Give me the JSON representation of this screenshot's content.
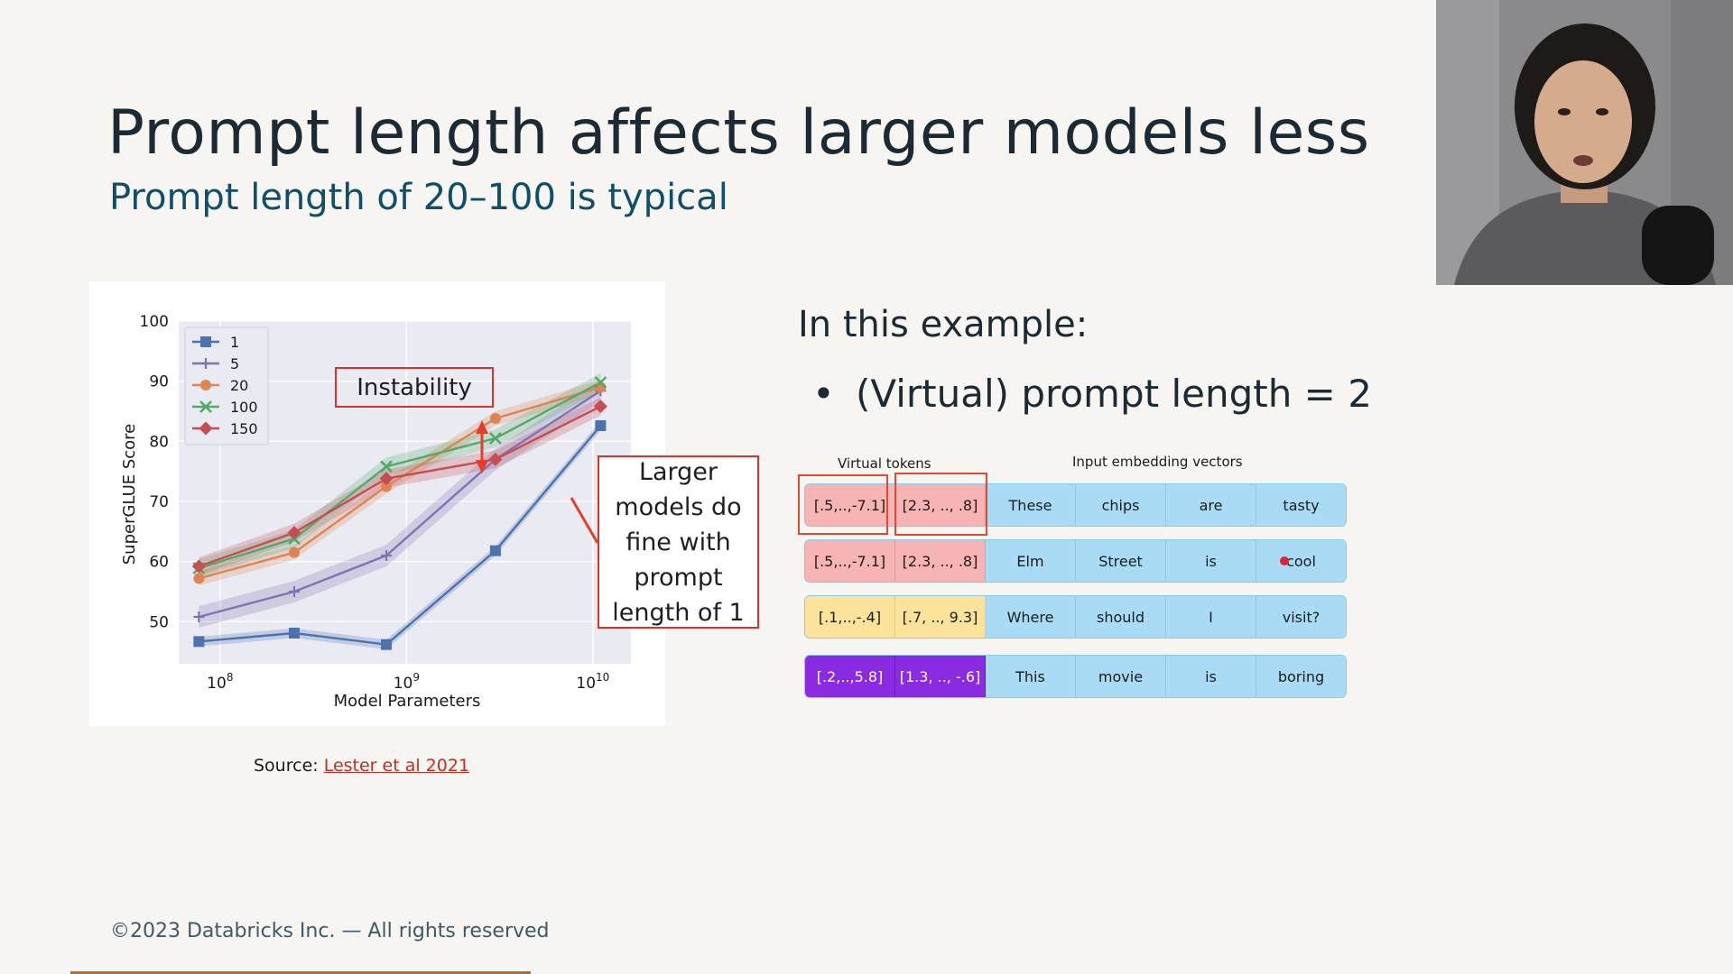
{
  "slide": {
    "title": "Prompt length affects larger models less",
    "subtitle": "Prompt length of 20–100 is typical"
  },
  "chart_data": {
    "type": "line",
    "xlabel": "Model Parameters",
    "ylabel": "SuperGLUE Score",
    "xscale": "log",
    "xlim": [
      60000000,
      16000000000
    ],
    "ylim": [
      43,
      100
    ],
    "x_ticks": [
      {
        "value": 100000000,
        "label_base": "10",
        "label_exp": "8"
      },
      {
        "value": 1000000000,
        "label_base": "10",
        "label_exp": "9"
      },
      {
        "value": 10000000000,
        "label_base": "10",
        "label_exp": "10"
      }
    ],
    "y_ticks": [
      50,
      60,
      70,
      80,
      90,
      100
    ],
    "grid": true,
    "legend_position": "top-left",
    "x": [
      77000000,
      250000000,
      780000000,
      3000000000,
      11000000000
    ],
    "series": [
      {
        "name": "1",
        "color": "#4c72b0",
        "marker": "square",
        "values": [
          46.7,
          48.1,
          46.2,
          61.8,
          82.6
        ],
        "band": 0.8
      },
      {
        "name": "5",
        "color": "#8172b2",
        "marker": "plus",
        "values": [
          50.8,
          55.0,
          61.0,
          77.0,
          88.4
        ],
        "band": 1.8
      },
      {
        "name": "20",
        "color": "#dd8452",
        "marker": "circle",
        "values": [
          57.2,
          61.5,
          72.5,
          83.8,
          89.0
        ],
        "band": 1.2
      },
      {
        "name": "100",
        "color": "#55a868",
        "marker": "x",
        "values": [
          58.9,
          63.8,
          75.8,
          80.5,
          89.8
        ],
        "band": 1.5
      },
      {
        "name": "150",
        "color": "#c44e52",
        "marker": "diamond",
        "values": [
          59.2,
          64.8,
          73.8,
          77.0,
          85.8
        ],
        "band": 1.5
      }
    ],
    "annotations": {
      "instability": "Instability",
      "larger_models": "Larger models do fine with prompt length of 1"
    }
  },
  "source": {
    "prefix": "Source: ",
    "link_text": "Lester et al 2021"
  },
  "example": {
    "heading": "In this example:",
    "bullet": "•",
    "bullet_text": "(Virtual) prompt length = 2",
    "header_virtual": "Virtual tokens",
    "header_input": "Input embedding vectors",
    "rows": [
      {
        "tokens": [
          "[.5,..,-7.1]",
          "[2.3, .., .8]"
        ],
        "words": [
          "These",
          "chips",
          "are",
          "tasty"
        ],
        "token_color": "pink"
      },
      {
        "tokens": [
          "[.5,..,-7.1]",
          "[2.3, .., .8]"
        ],
        "words": [
          "Elm",
          "Street",
          "is",
          "cool"
        ],
        "token_color": "pink"
      },
      {
        "tokens": [
          "[.1,..,-.4]",
          "[.7, .., 9.3]"
        ],
        "words": [
          "Where",
          "should",
          "I",
          "visit?"
        ],
        "token_color": "yellow"
      },
      {
        "tokens": [
          "[.2,..,5.8]",
          "[1.3, .., -.6]"
        ],
        "words": [
          "This",
          "movie",
          "is",
          "boring"
        ],
        "token_color": "purple"
      }
    ]
  },
  "footer": "©2023 Databricks Inc. — All rights reserved"
}
